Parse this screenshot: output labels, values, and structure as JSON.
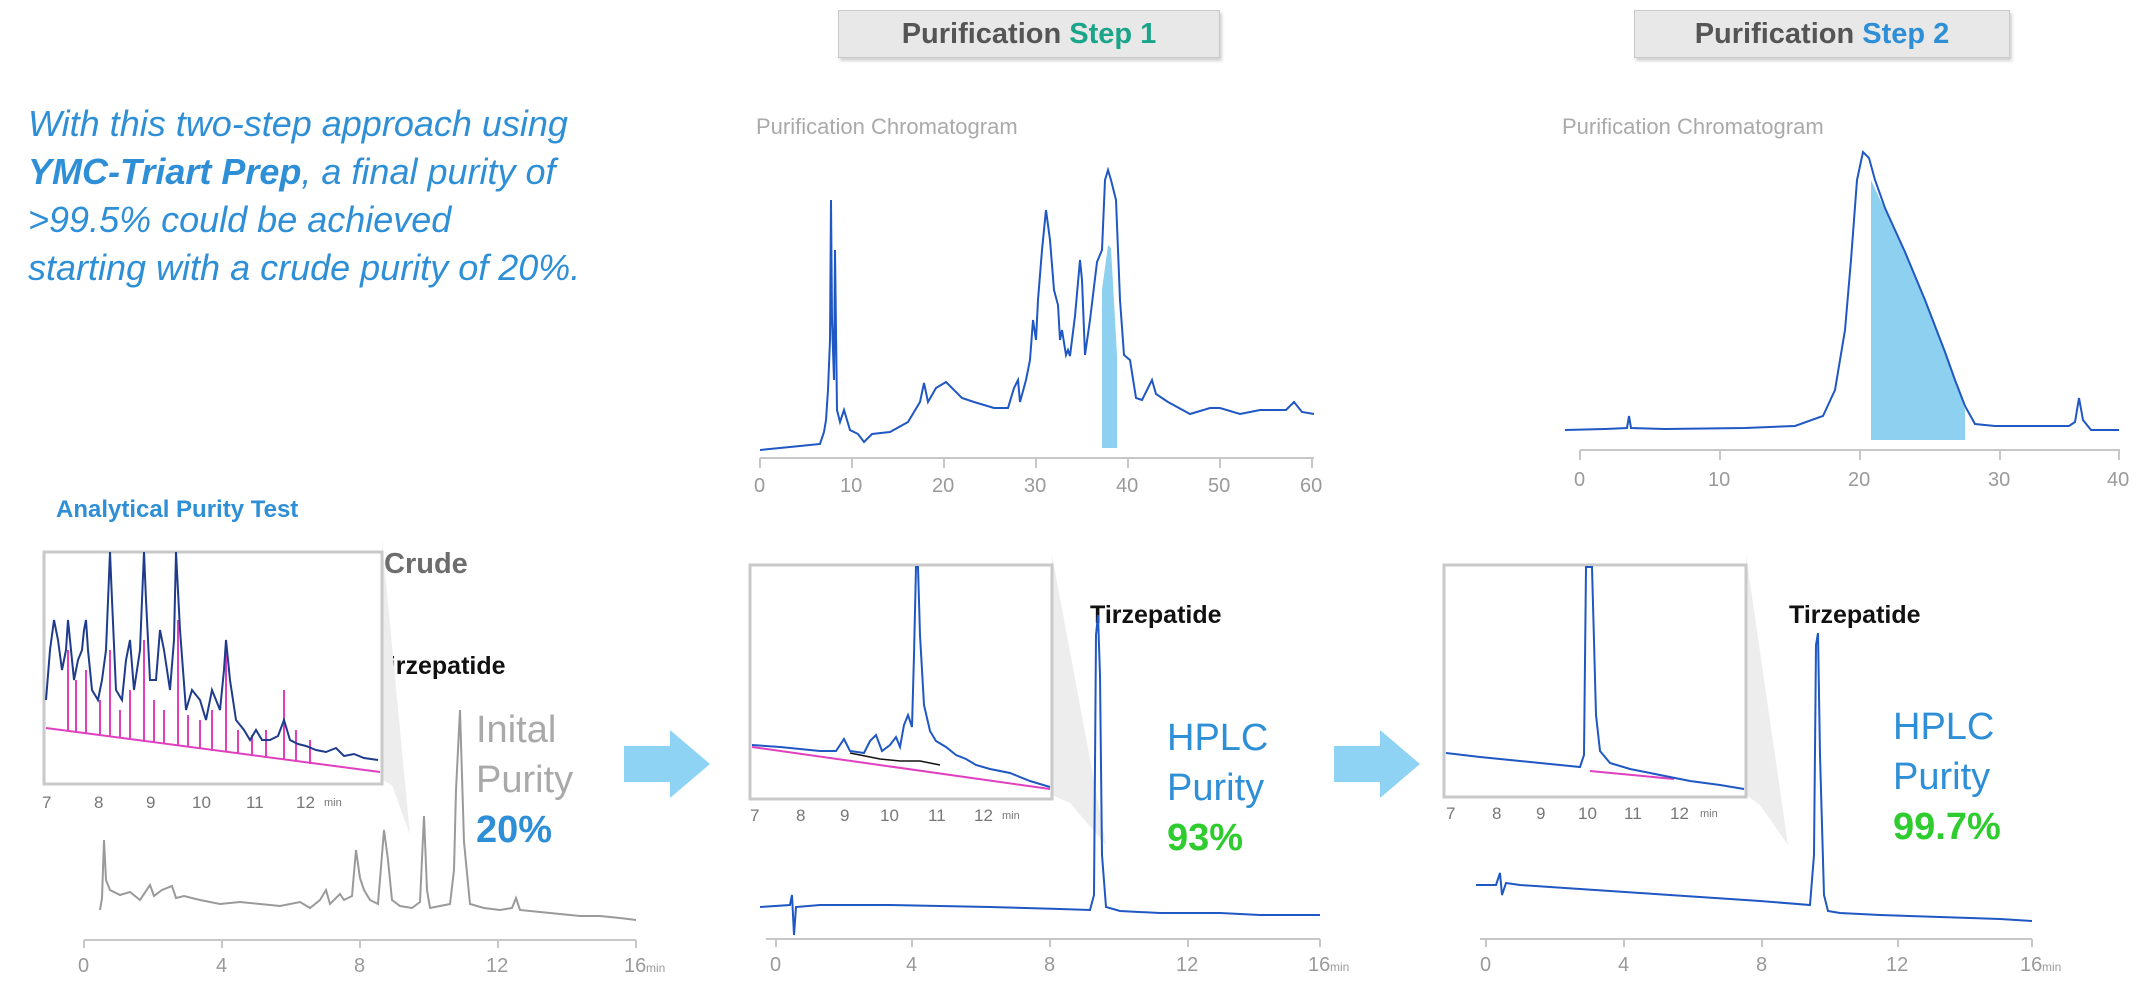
{
  "header": {
    "step1": {
      "prefix": "Purification",
      "step": "Step 1",
      "step_color": "#1aa58a"
    },
    "step2": {
      "prefix": "Purification",
      "step": "Step 2",
      "step_color": "#2f8fd6"
    }
  },
  "intro": {
    "line1": "With this two-step approach using",
    "bold": "YMC-Triart Prep",
    "line2_rest": ", a final purity of",
    "line3": ">99.5% could be achieved",
    "line4": "starting with a crude purity of 20%."
  },
  "colors": {
    "trace_blue": "#1f57c3",
    "trace_grey": "#9a9a9a",
    "fraction_fill": "#8ed0ef",
    "integration_pink": "#e040c0",
    "accent_blue": "#2f8fd6",
    "accent_green": "#2ecc2e",
    "arrow": "#8fd3f4"
  },
  "prep1": {
    "label": "Purification Chromatogram",
    "x_ticks": [
      "0",
      "10",
      "20",
      "30",
      "40",
      "50",
      "60"
    ]
  },
  "prep2": {
    "label": "Purification Chromatogram",
    "x_ticks": [
      "0",
      "10",
      "20",
      "30",
      "40"
    ]
  },
  "analytical": {
    "title": "Analytical Purity Test",
    "crude_label": "Crude",
    "inset_ticks": [
      "7",
      "8",
      "9",
      "10",
      "11",
      "12"
    ],
    "inset_unit": "min",
    "x_ticks": [
      "0",
      "4",
      "8",
      "12",
      "16"
    ],
    "x_unit": "min"
  },
  "panels": {
    "crude": {
      "peak_label": "Tirzepatide",
      "purity_line1": "Inital",
      "purity_line2": "Purity",
      "purity_value": "20%"
    },
    "step1": {
      "peak_label": "Tirzepatide",
      "purity_line1": "HPLC",
      "purity_line2": "Purity",
      "purity_value": "93%"
    },
    "step2": {
      "peak_label": "Tirzepatide",
      "purity_line1": "HPLC",
      "purity_line2": "Purity",
      "purity_value": "99.7%"
    }
  }
}
